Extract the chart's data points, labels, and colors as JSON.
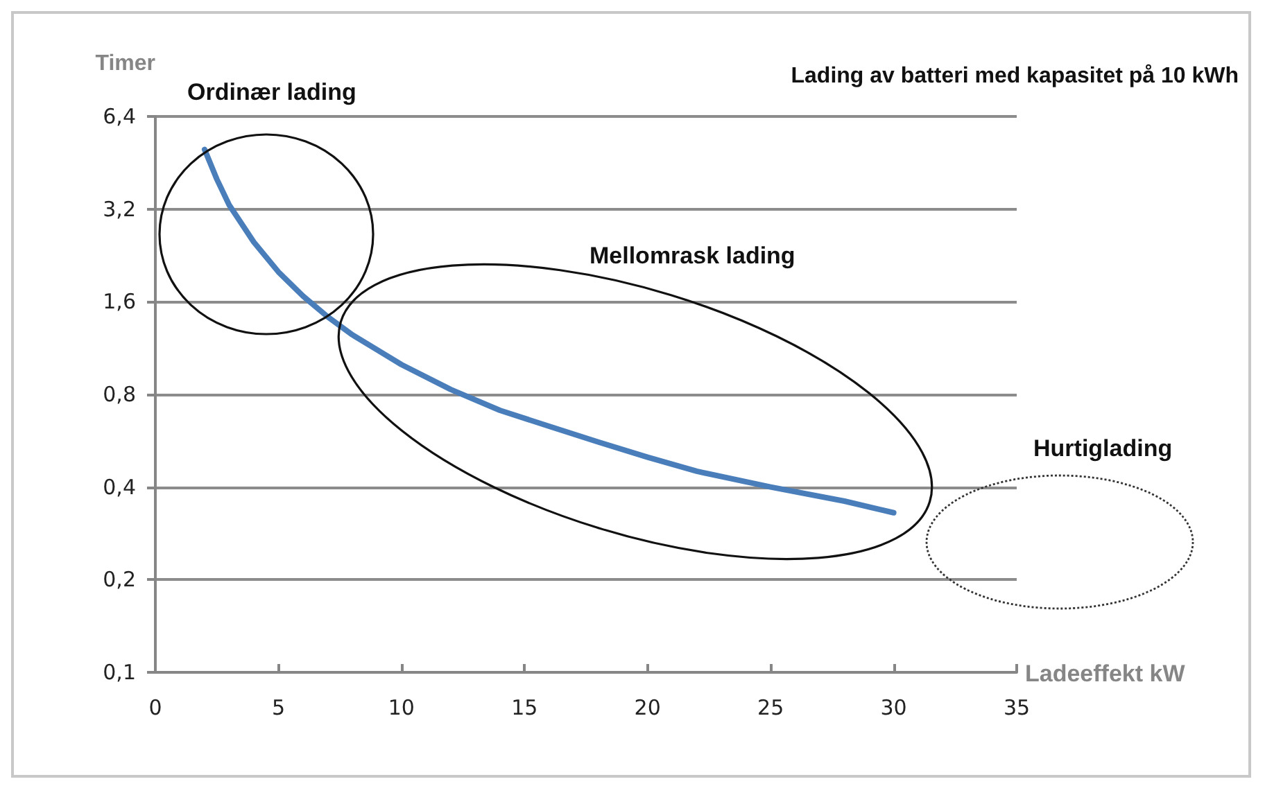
{
  "chart_data": {
    "type": "line",
    "title": "Lading av batteri med kapasitet på 10 kWh",
    "xlabel": "Ladeeffekt kW",
    "ylabel": "Timer",
    "annotations": [
      "Ordinær lading",
      "Mellomrask lading",
      "Hurtiglading"
    ],
    "x": [
      2,
      2.5,
      3,
      4,
      5,
      6,
      7,
      8,
      10,
      12,
      14,
      16,
      18,
      20,
      22,
      25,
      28,
      30
    ],
    "series": [
      {
        "color": "#4a7ebb",
        "values": [
          5,
          4,
          3.3,
          2.5,
          2,
          1.67,
          1.43,
          1.25,
          1,
          0.83,
          0.71,
          0.63,
          0.56,
          0.5,
          0.45,
          0.4,
          0.36,
          0.33
        ]
      }
    ],
    "xlim": [
      0,
      35
    ],
    "xticks": [
      0,
      5,
      10,
      15,
      20,
      25,
      30,
      35
    ],
    "ylim": [
      0.1,
      6.4
    ],
    "yticks": [
      {
        "value": 0.1,
        "label": "0,1"
      },
      {
        "value": 0.2,
        "label": "0,2"
      },
      {
        "value": 0.4,
        "label": "0,4"
      },
      {
        "value": 0.8,
        "label": "0,8"
      },
      {
        "value": 1.6,
        "label": "1,6"
      },
      {
        "value": 3.2,
        "label": "3,2"
      },
      {
        "value": 6.4,
        "label": "6,4"
      }
    ],
    "log": "y",
    "grid": "y",
    "marker": "none",
    "line_style": "solid"
  }
}
